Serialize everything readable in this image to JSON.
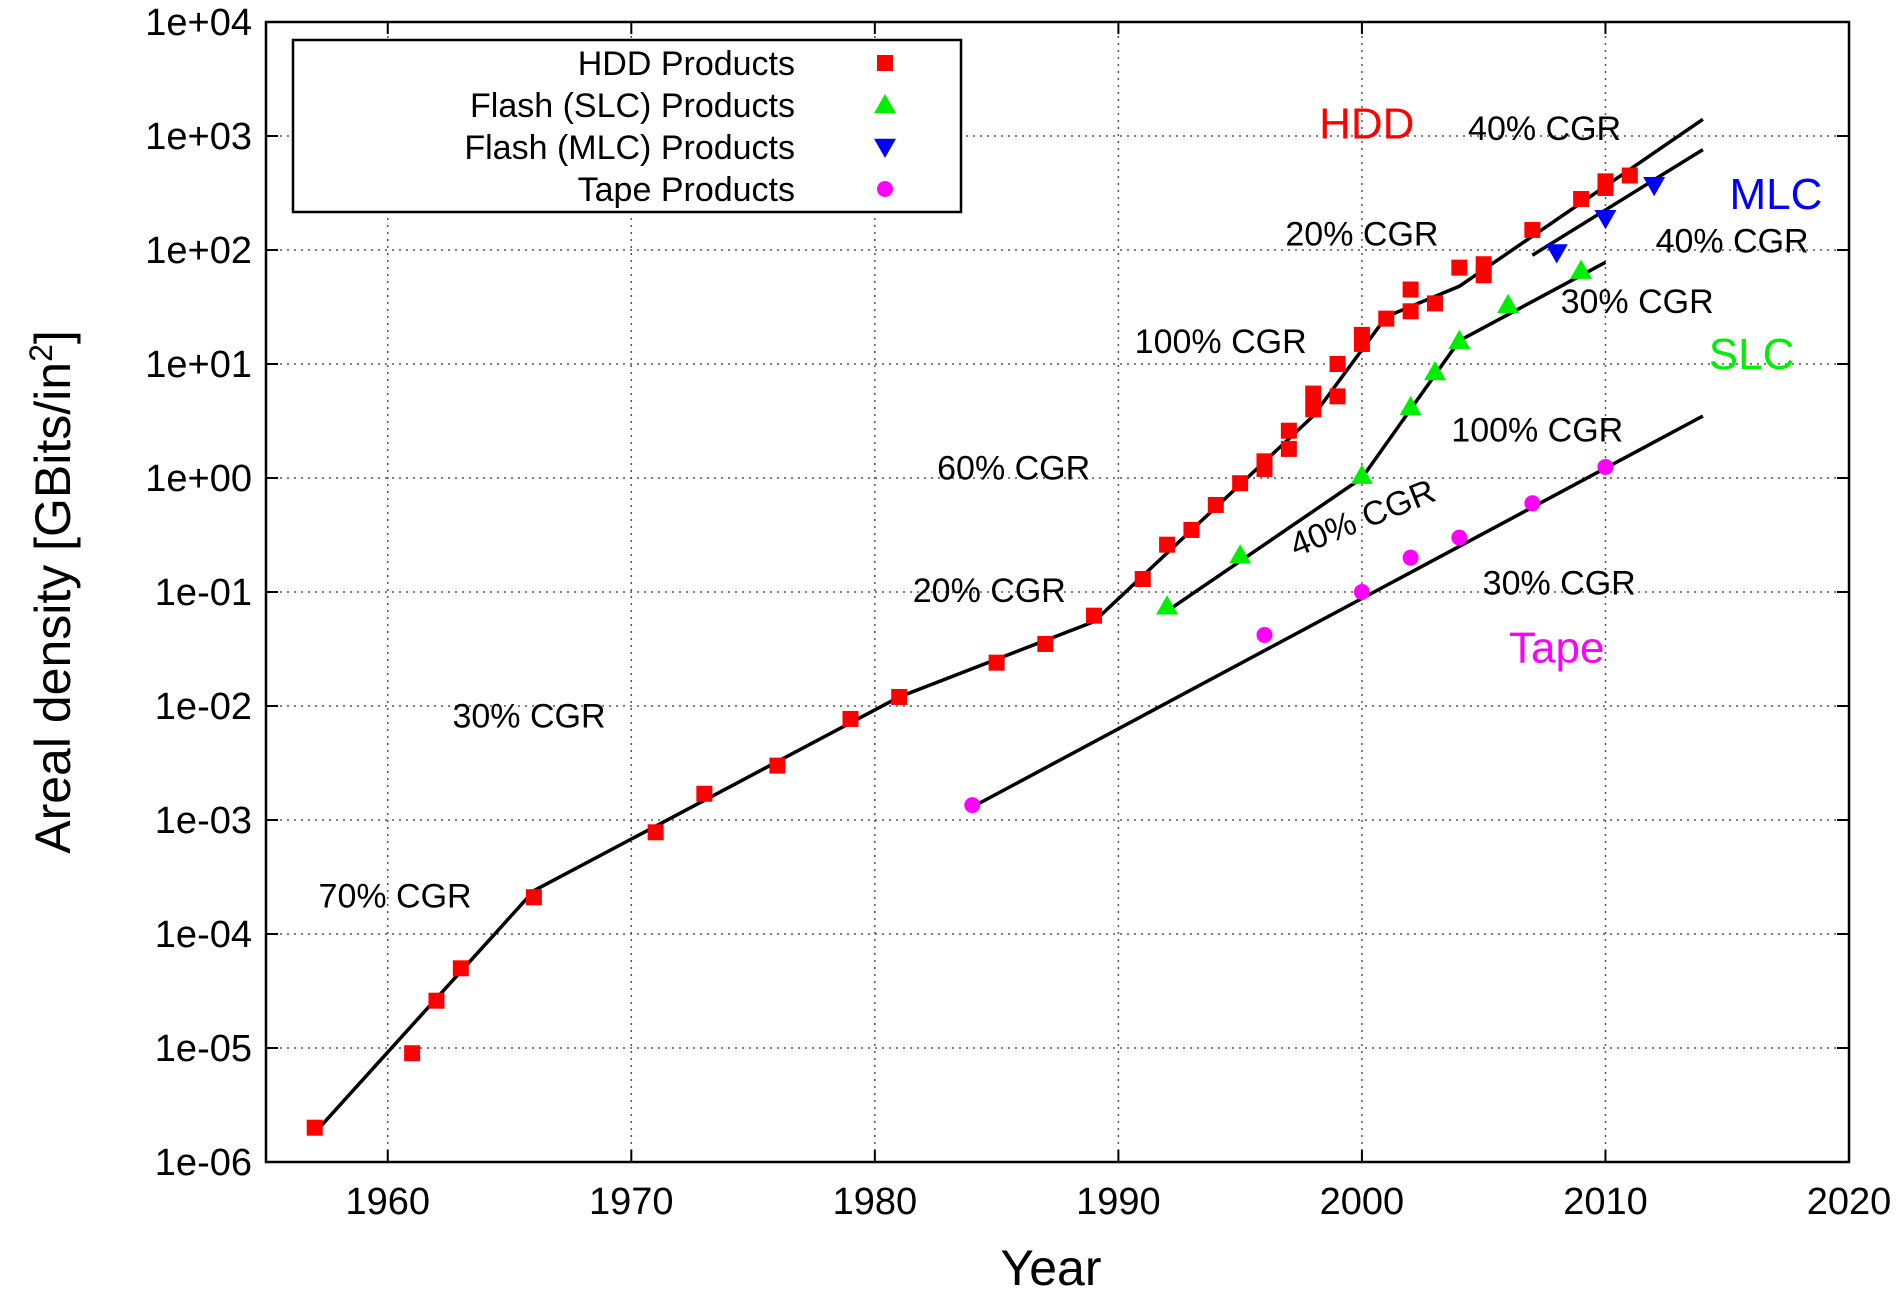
{
  "chart_data": {
    "type": "scatter",
    "xlabel": "Year",
    "ylabel": "Areal density [GBits/in²]",
    "xlim": [
      1955,
      2020
    ],
    "ylim": [
      1e-06,
      10000.0
    ],
    "y_scale": "log",
    "grid": true,
    "legend_position": "top-left",
    "x_ticks": [
      "1960",
      "1970",
      "1980",
      "1990",
      "2000",
      "2010",
      "2020"
    ],
    "y_ticks": [
      "1e-06",
      "1e-05",
      "1e-04",
      "1e-03",
      "1e-02",
      "1e-01",
      "1e+00",
      "1e+01",
      "1e+02",
      "1e+03",
      "1e+04"
    ],
    "series": [
      {
        "name": "HDD Products",
        "marker": "square",
        "color": "#ff0000",
        "points": [
          [
            1957,
            2e-06
          ],
          [
            1961,
            9e-06
          ],
          [
            1962,
            2.6e-05
          ],
          [
            1963,
            5e-05
          ],
          [
            1966,
            0.00021
          ],
          [
            1971,
            0.00078
          ],
          [
            1973,
            0.0017
          ],
          [
            1976,
            0.003
          ],
          [
            1979,
            0.0077
          ],
          [
            1981,
            0.012
          ],
          [
            1985,
            0.024
          ],
          [
            1987,
            0.035
          ],
          [
            1989,
            0.062
          ],
          [
            1991,
            0.13
          ],
          [
            1992,
            0.26
          ],
          [
            1993,
            0.35
          ],
          [
            1994,
            0.58
          ],
          [
            1995,
            0.9
          ],
          [
            1996,
            1.2
          ],
          [
            1996,
            1.4
          ],
          [
            1997,
            1.8
          ],
          [
            1997,
            2.6
          ],
          [
            1998,
            4
          ],
          [
            1998,
            5.5
          ],
          [
            1999,
            5.2
          ],
          [
            1999,
            10
          ],
          [
            2000,
            15
          ],
          [
            2000,
            18
          ],
          [
            2001,
            25
          ],
          [
            2002,
            29
          ],
          [
            2002,
            45
          ],
          [
            2003,
            34
          ],
          [
            2004,
            70
          ],
          [
            2005,
            60
          ],
          [
            2005,
            75
          ],
          [
            2007,
            150
          ],
          [
            2009,
            280
          ],
          [
            2010,
            350
          ],
          [
            2010,
            400
          ],
          [
            2011,
            450
          ]
        ]
      },
      {
        "name": "Flash (SLC) Products",
        "marker": "triangle-up",
        "color": "#00ee00",
        "points": [
          [
            1992,
            0.075
          ],
          [
            1995,
            0.21
          ],
          [
            2000,
            1.05
          ],
          [
            2002,
            4.2
          ],
          [
            2003,
            8.5
          ],
          [
            2004,
            16
          ],
          [
            2006,
            33
          ],
          [
            2009,
            66
          ]
        ]
      },
      {
        "name": "Flash (MLC) Products",
        "marker": "triangle-down",
        "color": "#0000ff",
        "points": [
          [
            2008,
            95
          ],
          [
            2010,
            190
          ],
          [
            2012,
            370
          ]
        ]
      },
      {
        "name": "Tape Products",
        "marker": "circle",
        "color": "#ff00ff",
        "points": [
          [
            1984,
            0.00135
          ],
          [
            1996,
            0.042
          ],
          [
            2000,
            0.1
          ],
          [
            2002,
            0.2
          ],
          [
            2004,
            0.3
          ],
          [
            2007,
            0.6
          ],
          [
            2010,
            1.25
          ]
        ]
      }
    ],
    "trend_lines": [
      {
        "group": "HDD",
        "points": [
          [
            1957,
            1.8e-06
          ],
          [
            1966,
            0.00024
          ],
          [
            1981,
            0.012
          ],
          [
            1989,
            0.055
          ],
          [
            1998,
            3.5
          ],
          [
            2001,
            26
          ],
          [
            2004,
            48
          ],
          [
            2014,
            1400
          ]
        ]
      },
      {
        "group": "MLC",
        "points": [
          [
            2007,
            90
          ],
          [
            2014,
            760
          ]
        ]
      },
      {
        "group": "SLC",
        "points": [
          [
            1992,
            0.068
          ],
          [
            2000,
            1.0
          ],
          [
            2004,
            16
          ],
          [
            2010,
            78
          ]
        ]
      },
      {
        "group": "Tape",
        "points": [
          [
            1984,
            0.0013
          ],
          [
            2014,
            3.5
          ]
        ]
      }
    ],
    "annotations": [
      {
        "text": "70% CGR",
        "x": 1960.3,
        "y": 0.00017
      },
      {
        "text": "30% CGR",
        "x": 1965.8,
        "y": 0.0065
      },
      {
        "text": "20% CGR",
        "x": 1984.7,
        "y": 0.082
      },
      {
        "text": "60% CGR",
        "x": 1985.7,
        "y": 0.97
      },
      {
        "text": "100% CGR",
        "x": 1994.2,
        "y": 12.5
      },
      {
        "text": "20% CGR",
        "x": 2000,
        "y": 110
      },
      {
        "text": "40% CGR",
        "x": 2007.5,
        "y": 920
      },
      {
        "text": "40% CGR",
        "x": 2000.2,
        "y": 0.36,
        "rotate": -22
      },
      {
        "text": "30% CGR",
        "x": 2008.1,
        "y": 0.095
      },
      {
        "text": "100% CGR",
        "x": 2007.2,
        "y": 2.1
      },
      {
        "text": "30% CGR",
        "x": 2011.3,
        "y": 28
      },
      {
        "text": "40% CGR",
        "x": 2015.2,
        "y": 95
      }
    ],
    "group_labels": [
      {
        "text": "HDD",
        "x": 2000.2,
        "y": 950,
        "color": "#ff0000"
      },
      {
        "text": "MLC",
        "x": 2017,
        "y": 230,
        "color": "#0000ff"
      },
      {
        "text": "SLC",
        "x": 2016,
        "y": 9,
        "color": "#00ee00"
      },
      {
        "text": "Tape",
        "x": 2008,
        "y": 0.024,
        "color": "#ff00ff"
      }
    ]
  }
}
